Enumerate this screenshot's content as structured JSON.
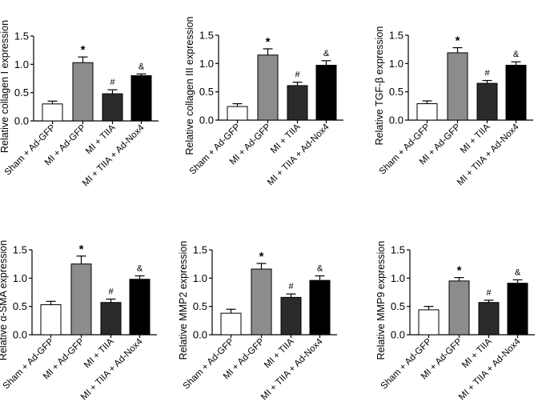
{
  "chart_data": [
    {
      "type": "bar",
      "ylabel": "Relative collagen I expression",
      "ylim": [
        0,
        1.5
      ],
      "yticks": [
        "0.0",
        "0.5",
        "1.0",
        "1.5"
      ],
      "categories": [
        "Sham + Ad-GFP",
        "MI + Ad-GFP",
        "MI + TIIA",
        "MI + TIIA + Ad-Nox4"
      ],
      "values": [
        0.3,
        1.03,
        0.48,
        0.8
      ],
      "errors": [
        0.05,
        0.1,
        0.07,
        0.03
      ],
      "annotations": [
        "",
        "*",
        "#",
        "&"
      ]
    },
    {
      "type": "bar",
      "ylabel": "Relative collagen III expression",
      "ylim": [
        0,
        1.5
      ],
      "yticks": [
        "0.0",
        "0.5",
        "1.0",
        "1.5"
      ],
      "categories": [
        "Sham + Ad-GFP",
        "MI + Ad-GFP",
        "MI + TIIA",
        "MI + TIIA + Ad-Nox4"
      ],
      "values": [
        0.24,
        1.15,
        0.61,
        0.97
      ],
      "errors": [
        0.05,
        0.11,
        0.06,
        0.08
      ],
      "annotations": [
        "",
        "*",
        "#",
        "&"
      ]
    },
    {
      "type": "bar",
      "ylabel": "Relative TGF-β expression",
      "ylim": [
        0,
        1.5
      ],
      "yticks": [
        "0.0",
        "0.5",
        "1.0",
        "1.5"
      ],
      "categories": [
        "Sham + Ad-GFP",
        "MI + Ad-GFP",
        "MI + TIIA",
        "MI + TIIA + Ad-Nox4"
      ],
      "values": [
        0.29,
        1.19,
        0.65,
        0.97
      ],
      "errors": [
        0.05,
        0.09,
        0.05,
        0.06
      ],
      "annotations": [
        "",
        "*",
        "#",
        "&"
      ]
    },
    {
      "type": "bar",
      "ylabel": "Relative α-SMA expression",
      "ylim": [
        0,
        1.5
      ],
      "yticks": [
        "0.0",
        "0.5",
        "1.0",
        "1.5"
      ],
      "categories": [
        "Sham + Ad-GFP",
        "MI + Ad-GFP",
        "MI + TIIA",
        "MI + TIIA + Ad-Nox4"
      ],
      "values": [
        0.53,
        1.25,
        0.57,
        0.98
      ],
      "errors": [
        0.06,
        0.14,
        0.06,
        0.06
      ],
      "annotations": [
        "",
        "*",
        "#",
        "&"
      ]
    },
    {
      "type": "bar",
      "ylabel": "Relative MMP2 expression",
      "ylim": [
        0,
        1.5
      ],
      "yticks": [
        "0.0",
        "0.5",
        "1.0",
        "1.5"
      ],
      "categories": [
        "Sham + Ad-GFP",
        "MI + Ad-GFP",
        "MI + TIIA",
        "MI + TIIA + Ad-Nox4"
      ],
      "values": [
        0.38,
        1.16,
        0.66,
        0.96
      ],
      "errors": [
        0.07,
        0.1,
        0.06,
        0.08
      ],
      "annotations": [
        "",
        "*",
        "#",
        "&"
      ]
    },
    {
      "type": "bar",
      "ylabel": "Relative MMP9 expression",
      "ylim": [
        0,
        1.5
      ],
      "yticks": [
        "0.0",
        "0.5",
        "1.0",
        "1.5"
      ],
      "categories": [
        "Sham + Ad-GFP",
        "MI + Ad-GFP",
        "MI + TIIA",
        "MI + TIIA + Ad-Nox4"
      ],
      "values": [
        0.44,
        0.95,
        0.57,
        0.91
      ],
      "errors": [
        0.06,
        0.06,
        0.04,
        0.06
      ],
      "annotations": [
        "",
        "*",
        "#",
        "&"
      ]
    }
  ],
  "colors": {
    "fills": [
      "#ffffff",
      "#8c8c8c",
      "#2b2b2b",
      "#000000"
    ],
    "stroke": "#000000"
  }
}
